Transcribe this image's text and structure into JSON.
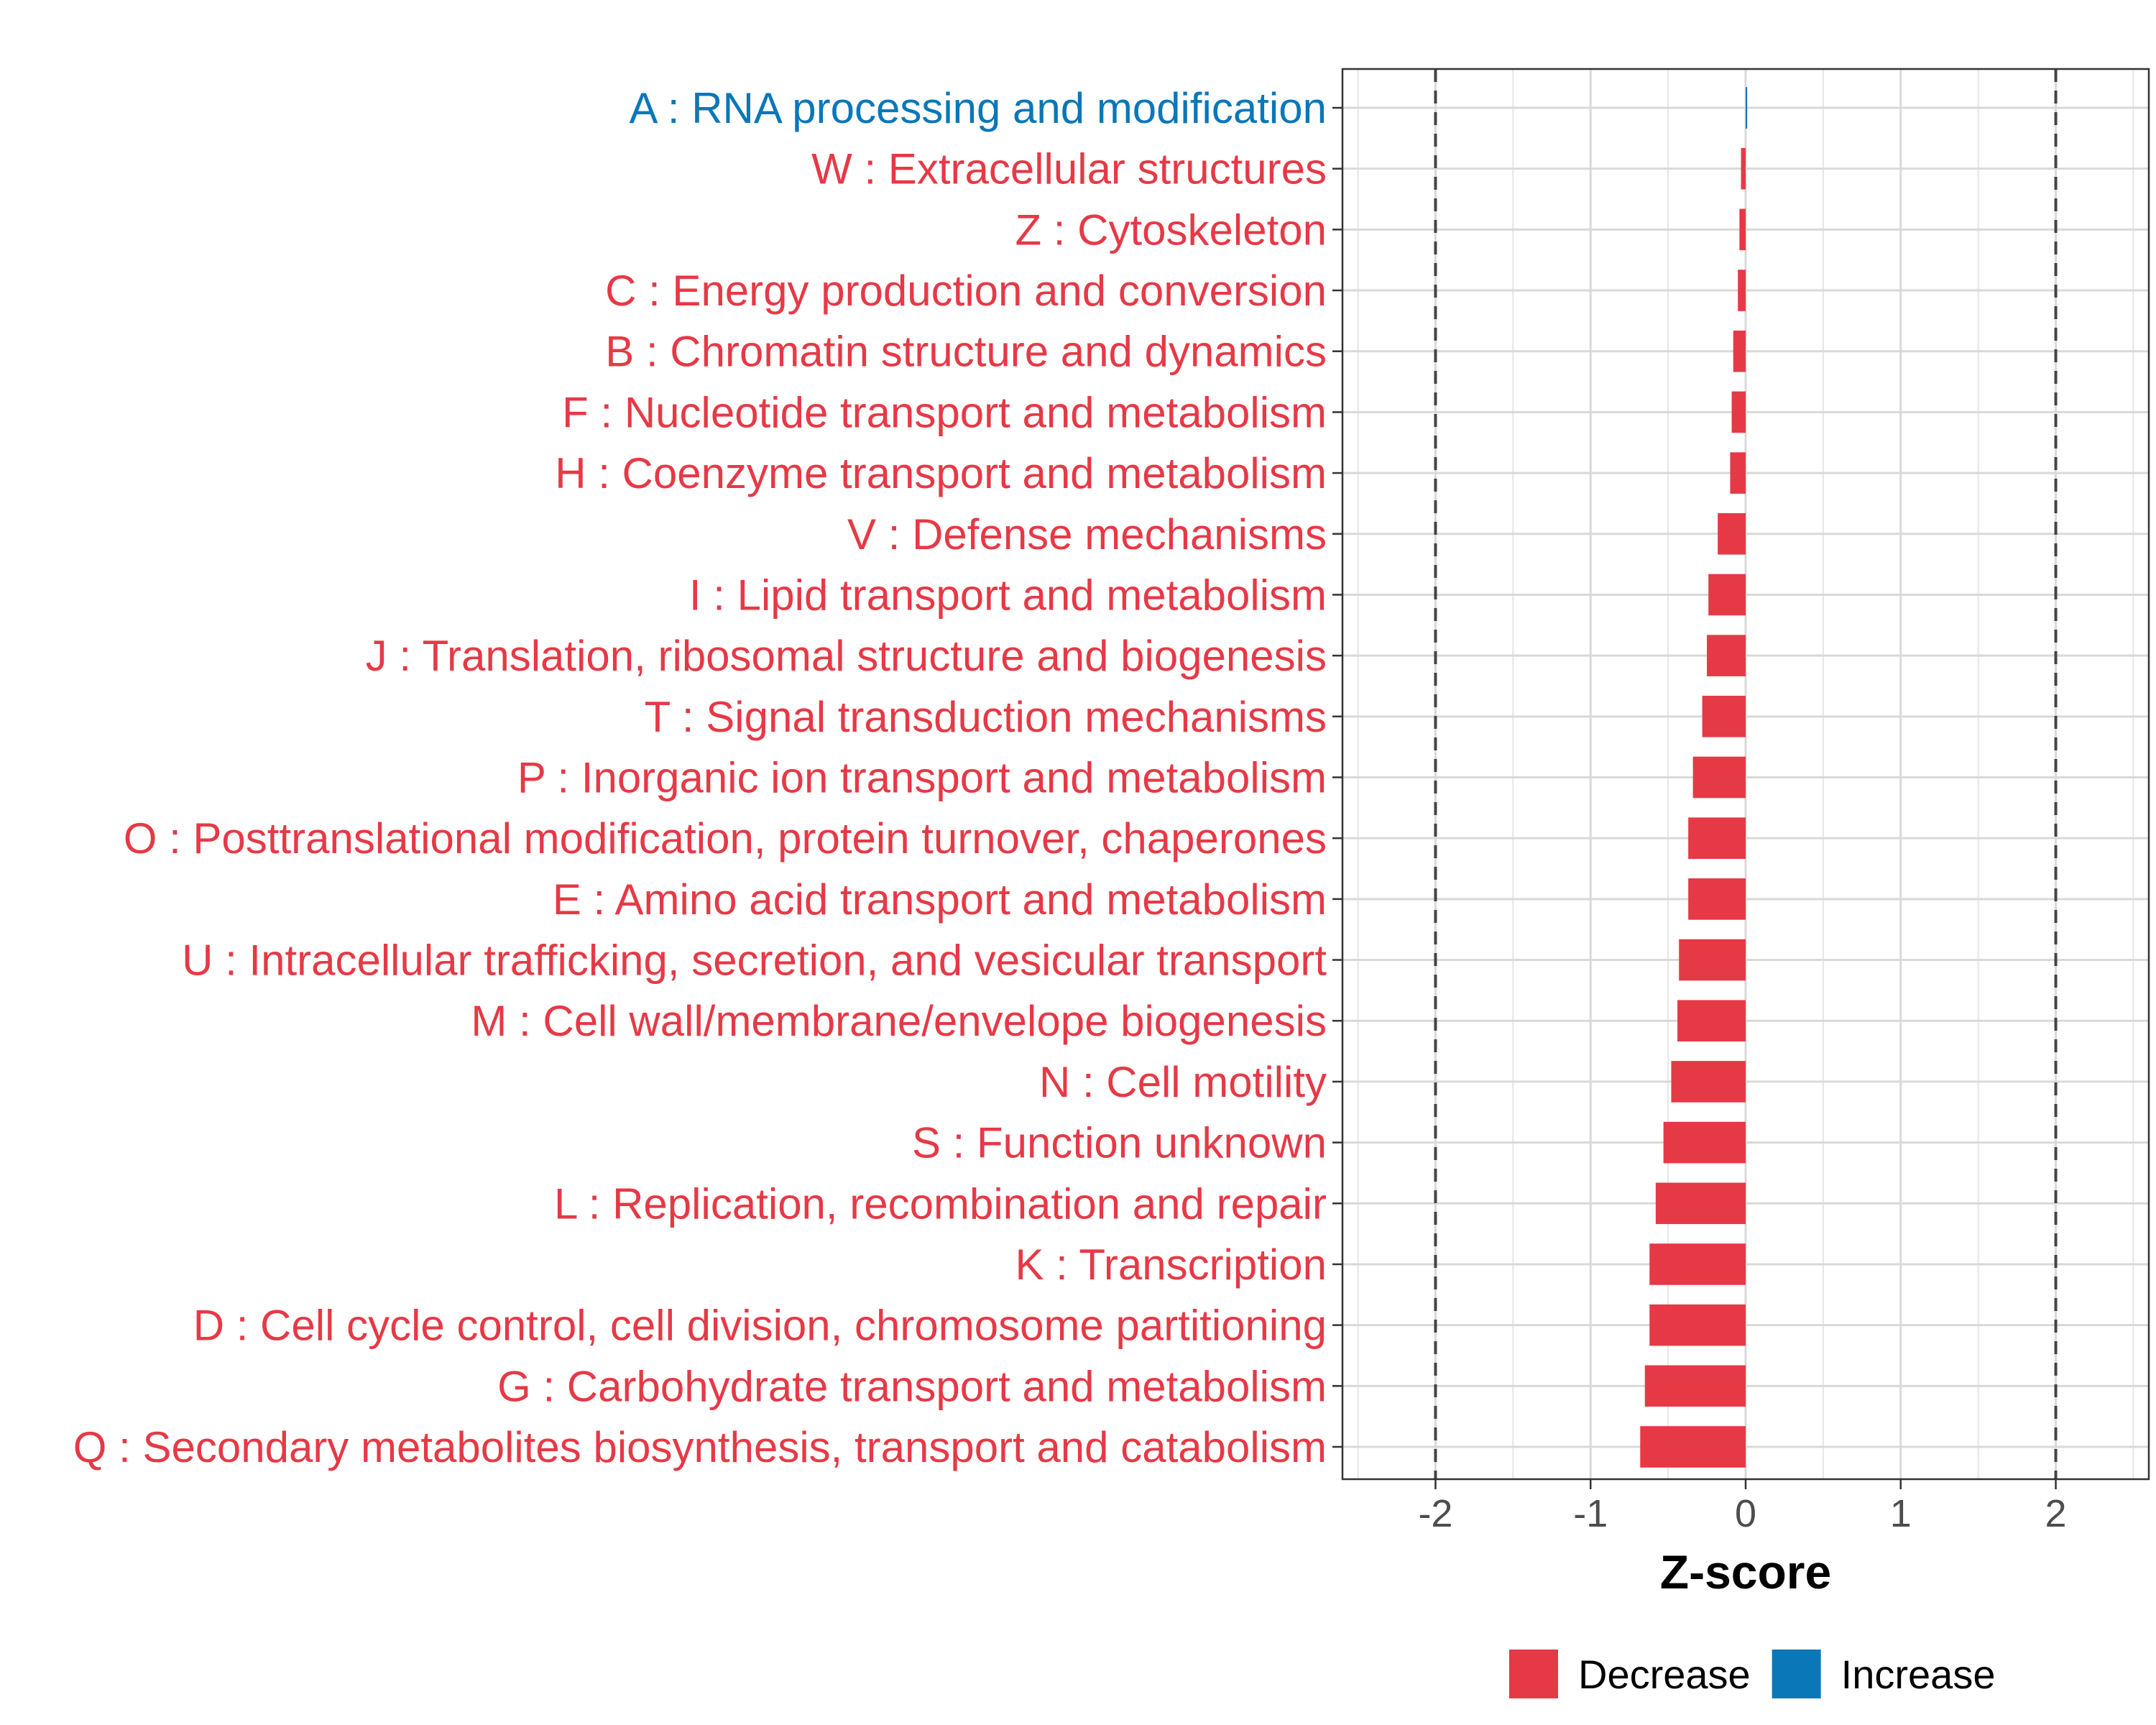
{
  "chart_data": {
    "type": "bar",
    "orientation": "horizontal",
    "xlabel": "Z-score",
    "xlim": [
      -2.6,
      2.6
    ],
    "x_ticks": [
      -2,
      -1,
      0,
      1,
      2
    ],
    "x_tick_labels": [
      "-2",
      "-1",
      "0",
      "1",
      "2"
    ],
    "reference_lines": [
      -2,
      2
    ],
    "grid": true,
    "colors": {
      "Decrease": "#e63946",
      "Increase": "#0a77b8"
    },
    "categories": [
      "A : RNA processing and modification",
      "W : Extracellular structures",
      "Z : Cytoskeleton",
      "C : Energy production and conversion",
      "B : Chromatin structure and dynamics",
      "F : Nucleotide transport and metabolism",
      "H : Coenzyme transport and metabolism",
      "V : Defense mechanisms",
      "I : Lipid transport and metabolism",
      "J : Translation, ribosomal structure and biogenesis",
      "T : Signal transduction mechanisms",
      "P : Inorganic ion transport and metabolism",
      "O : Posttranslational modification, protein turnover, chaperones",
      "E : Amino acid transport and metabolism",
      "U : Intracellular trafficking, secretion, and vesicular transport",
      "M : Cell wall/membrane/envelope biogenesis",
      "N : Cell motility",
      "S : Function unknown",
      "L : Replication, recombination and repair",
      "K : Transcription",
      "D : Cell cycle control, cell division, chromosome partitioning",
      "G : Carbohydrate transport and metabolism",
      "Q : Secondary metabolites biosynthesis, transport and catabolism"
    ],
    "values": [
      0.01,
      -0.03,
      -0.04,
      -0.05,
      -0.08,
      -0.09,
      -0.1,
      -0.18,
      -0.24,
      -0.25,
      -0.28,
      -0.34,
      -0.37,
      -0.37,
      -0.43,
      -0.44,
      -0.48,
      -0.53,
      -0.58,
      -0.62,
      -0.62,
      -0.65,
      -0.68
    ],
    "groups": [
      "Increase",
      "Decrease",
      "Decrease",
      "Decrease",
      "Decrease",
      "Decrease",
      "Decrease",
      "Decrease",
      "Decrease",
      "Decrease",
      "Decrease",
      "Decrease",
      "Decrease",
      "Decrease",
      "Decrease",
      "Decrease",
      "Decrease",
      "Decrease",
      "Decrease",
      "Decrease",
      "Decrease",
      "Decrease",
      "Decrease"
    ],
    "legend": {
      "position": "bottom",
      "entries": [
        "Decrease",
        "Increase"
      ]
    }
  }
}
